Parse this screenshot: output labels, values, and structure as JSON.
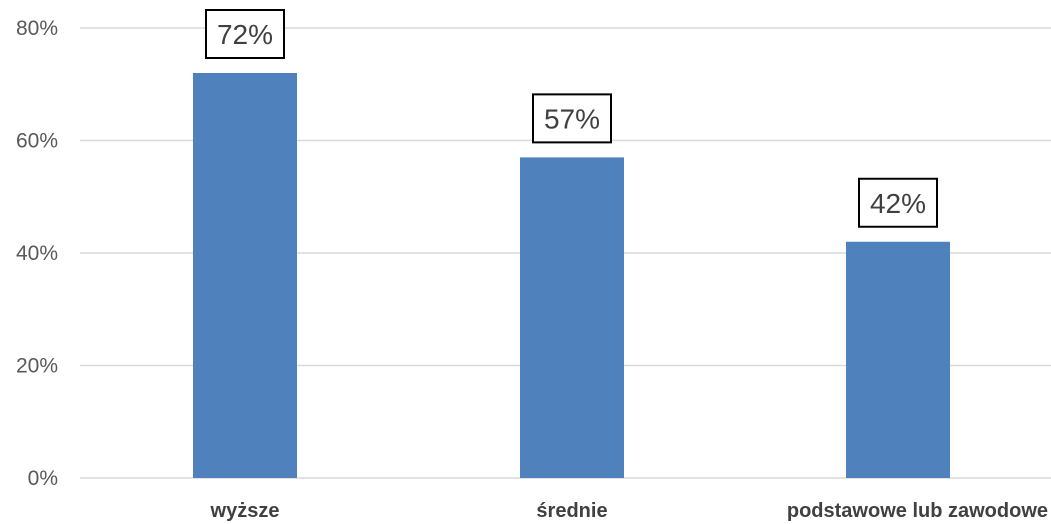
{
  "chart_data": {
    "type": "bar",
    "categories": [
      "wyższe",
      "średnie",
      "podstawowe lub zawodowe"
    ],
    "values": [
      72,
      57,
      42
    ],
    "data_labels": [
      "72%",
      "57%",
      "42%"
    ],
    "y_ticks": [
      {
        "value": 0,
        "label": "0%"
      },
      {
        "value": 20,
        "label": "20%"
      },
      {
        "value": 40,
        "label": "40%"
      },
      {
        "value": 60,
        "label": "60%"
      },
      {
        "value": 80,
        "label": "80%"
      }
    ],
    "ylim": [
      0,
      80
    ],
    "grid": true,
    "bar_color": "#4f81bd",
    "title": "",
    "xlabel": "",
    "ylabel": ""
  }
}
